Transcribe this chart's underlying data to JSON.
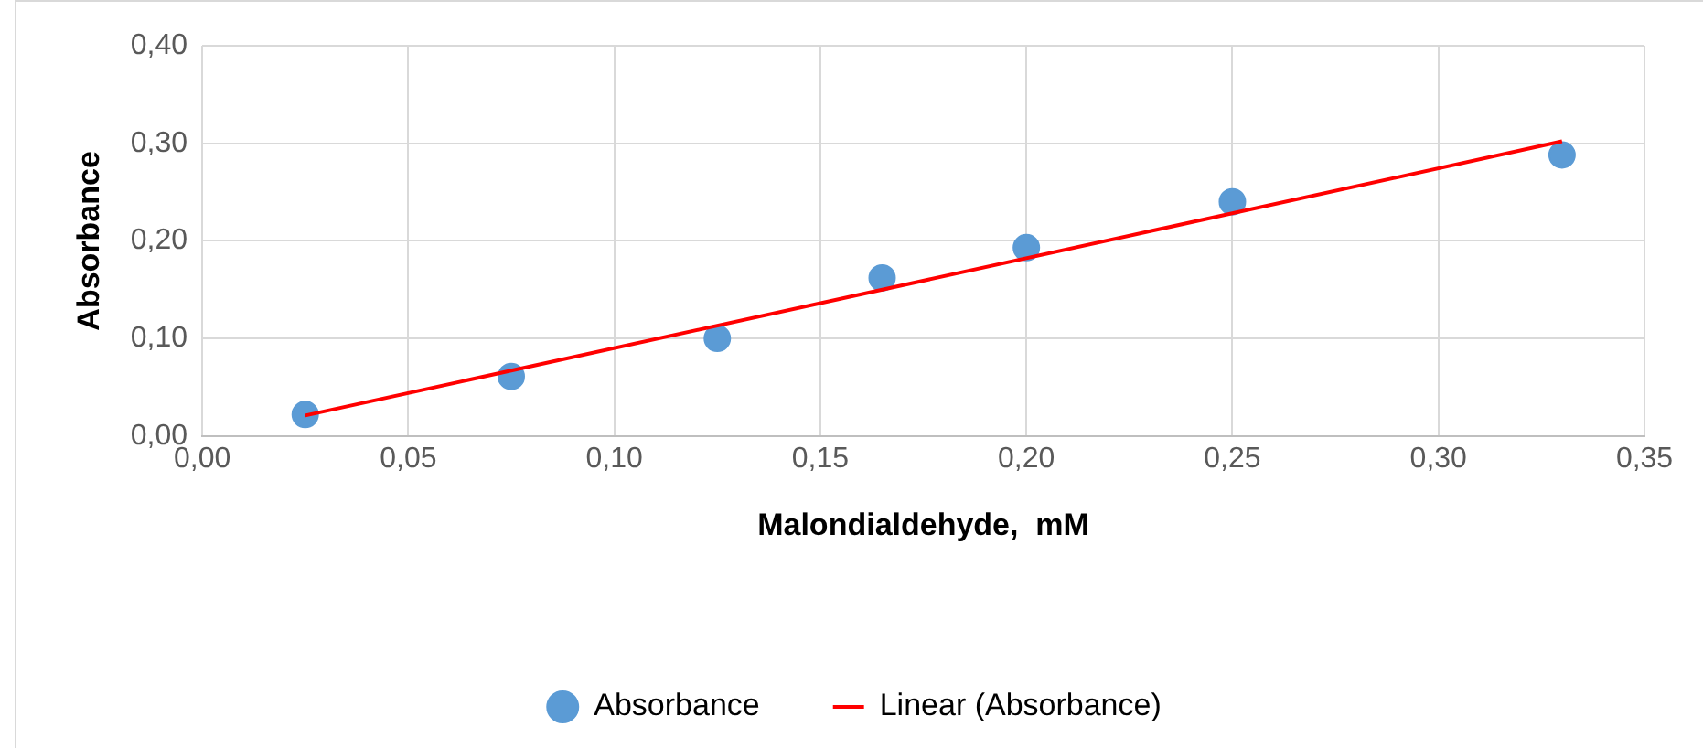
{
  "chart_data": {
    "type": "scatter",
    "xlabel": "Malondialdehyde,  mM",
    "ylabel": "Absorbance",
    "xlim": [
      0,
      0.35
    ],
    "xticks": [
      {
        "value": 0,
        "label": "0,00"
      },
      {
        "value": 0.05,
        "label": "0,05"
      },
      {
        "value": 0.1,
        "label": "0,10"
      },
      {
        "value": 0.15,
        "label": "0,15"
      },
      {
        "value": 0.2,
        "label": "0,20"
      },
      {
        "value": 0.25,
        "label": "0,25"
      },
      {
        "value": 0.3,
        "label": "0,30"
      },
      {
        "value": 0.35,
        "label": "0,35"
      }
    ],
    "ylim": [
      0,
      0.4
    ],
    "yticks": [
      {
        "value": 0,
        "label": "0,00"
      },
      {
        "value": 0.1,
        "label": "0,10"
      },
      {
        "value": 0.2,
        "label": "0,20"
      },
      {
        "value": 0.3,
        "label": "0,30"
      },
      {
        "value": 0.4,
        "label": "0,40"
      }
    ],
    "grid": true,
    "legend": "bottom",
    "series": [
      {
        "name": "Absorbance",
        "type": "scatter",
        "marker": "circle",
        "color": "#5b9bd5",
        "x": [
          0.025,
          0.075,
          0.125,
          0.165,
          0.2,
          0.25,
          0.33
        ],
        "values": [
          0.022,
          0.061,
          0.1,
          0.162,
          0.193,
          0.24,
          0.288
        ]
      },
      {
        "name": "Linear (Absorbance)",
        "type": "line",
        "marker": "none",
        "line_style": "solid",
        "color": "#ff0000",
        "x": [
          0.025,
          0.33
        ],
        "values": [
          0.021,
          0.302
        ]
      }
    ]
  }
}
